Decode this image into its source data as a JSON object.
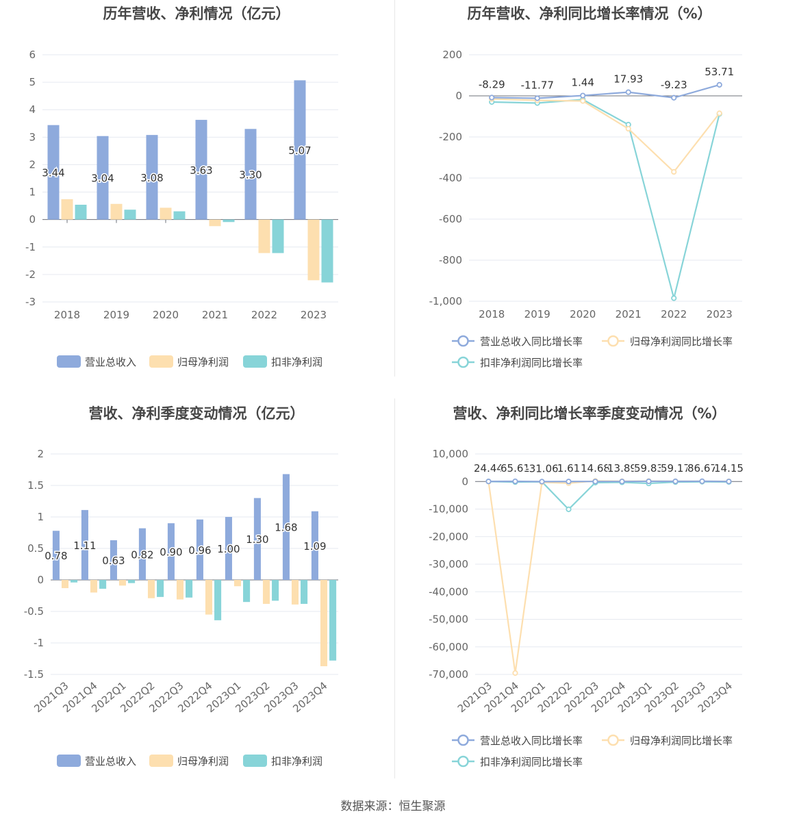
{
  "footer": {
    "source": "数据来源：恒生聚源"
  },
  "chart_data": [
    {
      "id": "annual-bar",
      "type": "bar",
      "title": "历年营收、净利情况（亿元）",
      "categories": [
        "2018",
        "2019",
        "2020",
        "2021",
        "2022",
        "2023"
      ],
      "ylim": [
        -3,
        6
      ],
      "yticks": [
        6,
        5,
        4,
        3,
        2,
        1,
        0,
        -1,
        -2,
        -3
      ],
      "series": [
        {
          "name": "营业总收入",
          "color": "#8eaadc",
          "values": [
            3.44,
            3.04,
            3.08,
            3.63,
            3.3,
            5.07
          ],
          "labels": [
            "3.44",
            "3.04",
            "3.08",
            "3.63",
            "3.30",
            "5.07"
          ]
        },
        {
          "name": "归母净利润",
          "color": "#fddfaf",
          "values": [
            0.74,
            0.57,
            0.43,
            -0.24,
            -1.22,
            -2.21
          ]
        },
        {
          "name": "扣非净利润",
          "color": "#87d4d8",
          "values": [
            0.54,
            0.36,
            0.3,
            -0.09,
            -1.22,
            -2.29
          ]
        }
      ]
    },
    {
      "id": "annual-line",
      "type": "line",
      "title": "历年营收、净利同比增长率情况（%）",
      "categories": [
        "2018",
        "2019",
        "2020",
        "2021",
        "2022",
        "2023"
      ],
      "ylim": [
        -1000,
        200
      ],
      "yticks": [
        "200",
        "0",
        "-200",
        "-400",
        "-600",
        "-800",
        "-1,000"
      ],
      "ytick_values": [
        200,
        0,
        -200,
        -400,
        -600,
        -800,
        -1000
      ],
      "series": [
        {
          "name": "营业总收入同比增长率",
          "color": "#8eaadc",
          "values": [
            -8.29,
            -11.77,
            1.44,
            17.93,
            -9.23,
            53.71
          ],
          "labels": [
            "-8.29",
            "-11.77",
            "1.44",
            "17.93",
            "-9.23",
            "53.71"
          ]
        },
        {
          "name": "归母净利润同比增长率",
          "color": "#fddfaf",
          "values": [
            -15,
            -22,
            -25,
            -160,
            -370,
            -85
          ]
        },
        {
          "name": "扣非净利润同比增长率",
          "color": "#87d4d8",
          "values": [
            -30,
            -35,
            -18,
            -140,
            -985,
            -88
          ]
        }
      ]
    },
    {
      "id": "quarter-bar",
      "type": "bar",
      "title": "营收、净利季度变动情况（亿元）",
      "categories": [
        "2021Q3",
        "2021Q4",
        "2022Q1",
        "2022Q2",
        "2022Q3",
        "2022Q4",
        "2023Q1",
        "2023Q2",
        "2023Q3",
        "2023Q4"
      ],
      "ylim": [
        -1.5,
        2
      ],
      "yticks": [
        "2",
        "1.5",
        "1",
        "0.5",
        "0",
        "-0.5",
        "-1",
        "-1.5"
      ],
      "ytick_values": [
        2,
        1.5,
        1,
        0.5,
        0,
        -0.5,
        -1,
        -1.5
      ],
      "series": [
        {
          "name": "营业总收入",
          "color": "#8eaadc",
          "values": [
            0.78,
            1.11,
            0.63,
            0.82,
            0.9,
            0.96,
            1.0,
            1.3,
            1.68,
            1.09
          ],
          "labels": [
            "0.78",
            "1.11",
            "0.63",
            "0.82",
            "0.90",
            "0.96",
            "1.00",
            "1.30",
            "1.68",
            "1.09"
          ]
        },
        {
          "name": "归母净利润",
          "color": "#fddfaf",
          "values": [
            -0.13,
            -0.2,
            -0.09,
            -0.29,
            -0.31,
            -0.55,
            -0.1,
            -0.38,
            -0.39,
            -1.37
          ]
        },
        {
          "name": "扣非净利润",
          "color": "#87d4d8",
          "values": [
            -0.04,
            -0.14,
            -0.05,
            -0.27,
            -0.28,
            -0.64,
            -0.35,
            -0.33,
            -0.38,
            -1.28
          ]
        }
      ]
    },
    {
      "id": "quarter-line",
      "type": "line",
      "title": "营收、净利同比增长率季度变动情况（%）",
      "categories": [
        "2021Q3",
        "2021Q4",
        "2022Q1",
        "2022Q2",
        "2022Q3",
        "2022Q4",
        "2023Q1",
        "2023Q2",
        "2023Q3",
        "2023Q4"
      ],
      "ylim": [
        -70000,
        10000
      ],
      "yticks": [
        "10,000",
        "0",
        "-10,000",
        "-20,000",
        "-30,000",
        "-40,000",
        "-50,000",
        "-60,000",
        "-70,000"
      ],
      "ytick_values": [
        10000,
        0,
        -10000,
        -20000,
        -30000,
        -40000,
        -50000,
        -60000,
        -70000
      ],
      "series": [
        {
          "name": "营业总收入同比增长率",
          "color": "#8eaadc",
          "values": [
            24.44,
            65.61,
            -31.06,
            1.61,
            14.68,
            13.89,
            59.83,
            59.17,
            86.67,
            14.15
          ],
          "labels": [
            "24.44",
            "65.61",
            "-31.06",
            "1.61",
            "14.68",
            "13.89",
            "59.83",
            "59.17",
            "86.67",
            "14.15"
          ]
        },
        {
          "name": "归母净利润同比增长率",
          "color": "#fddfaf",
          "values": [
            0,
            -69500,
            -300,
            -600,
            200,
            100,
            150,
            100,
            80,
            70
          ]
        },
        {
          "name": "扣非净利润同比增长率",
          "color": "#87d4d8",
          "values": [
            0,
            -200,
            -100,
            -10100,
            -400,
            -300,
            -700,
            -200,
            -100,
            -150
          ]
        }
      ]
    }
  ]
}
